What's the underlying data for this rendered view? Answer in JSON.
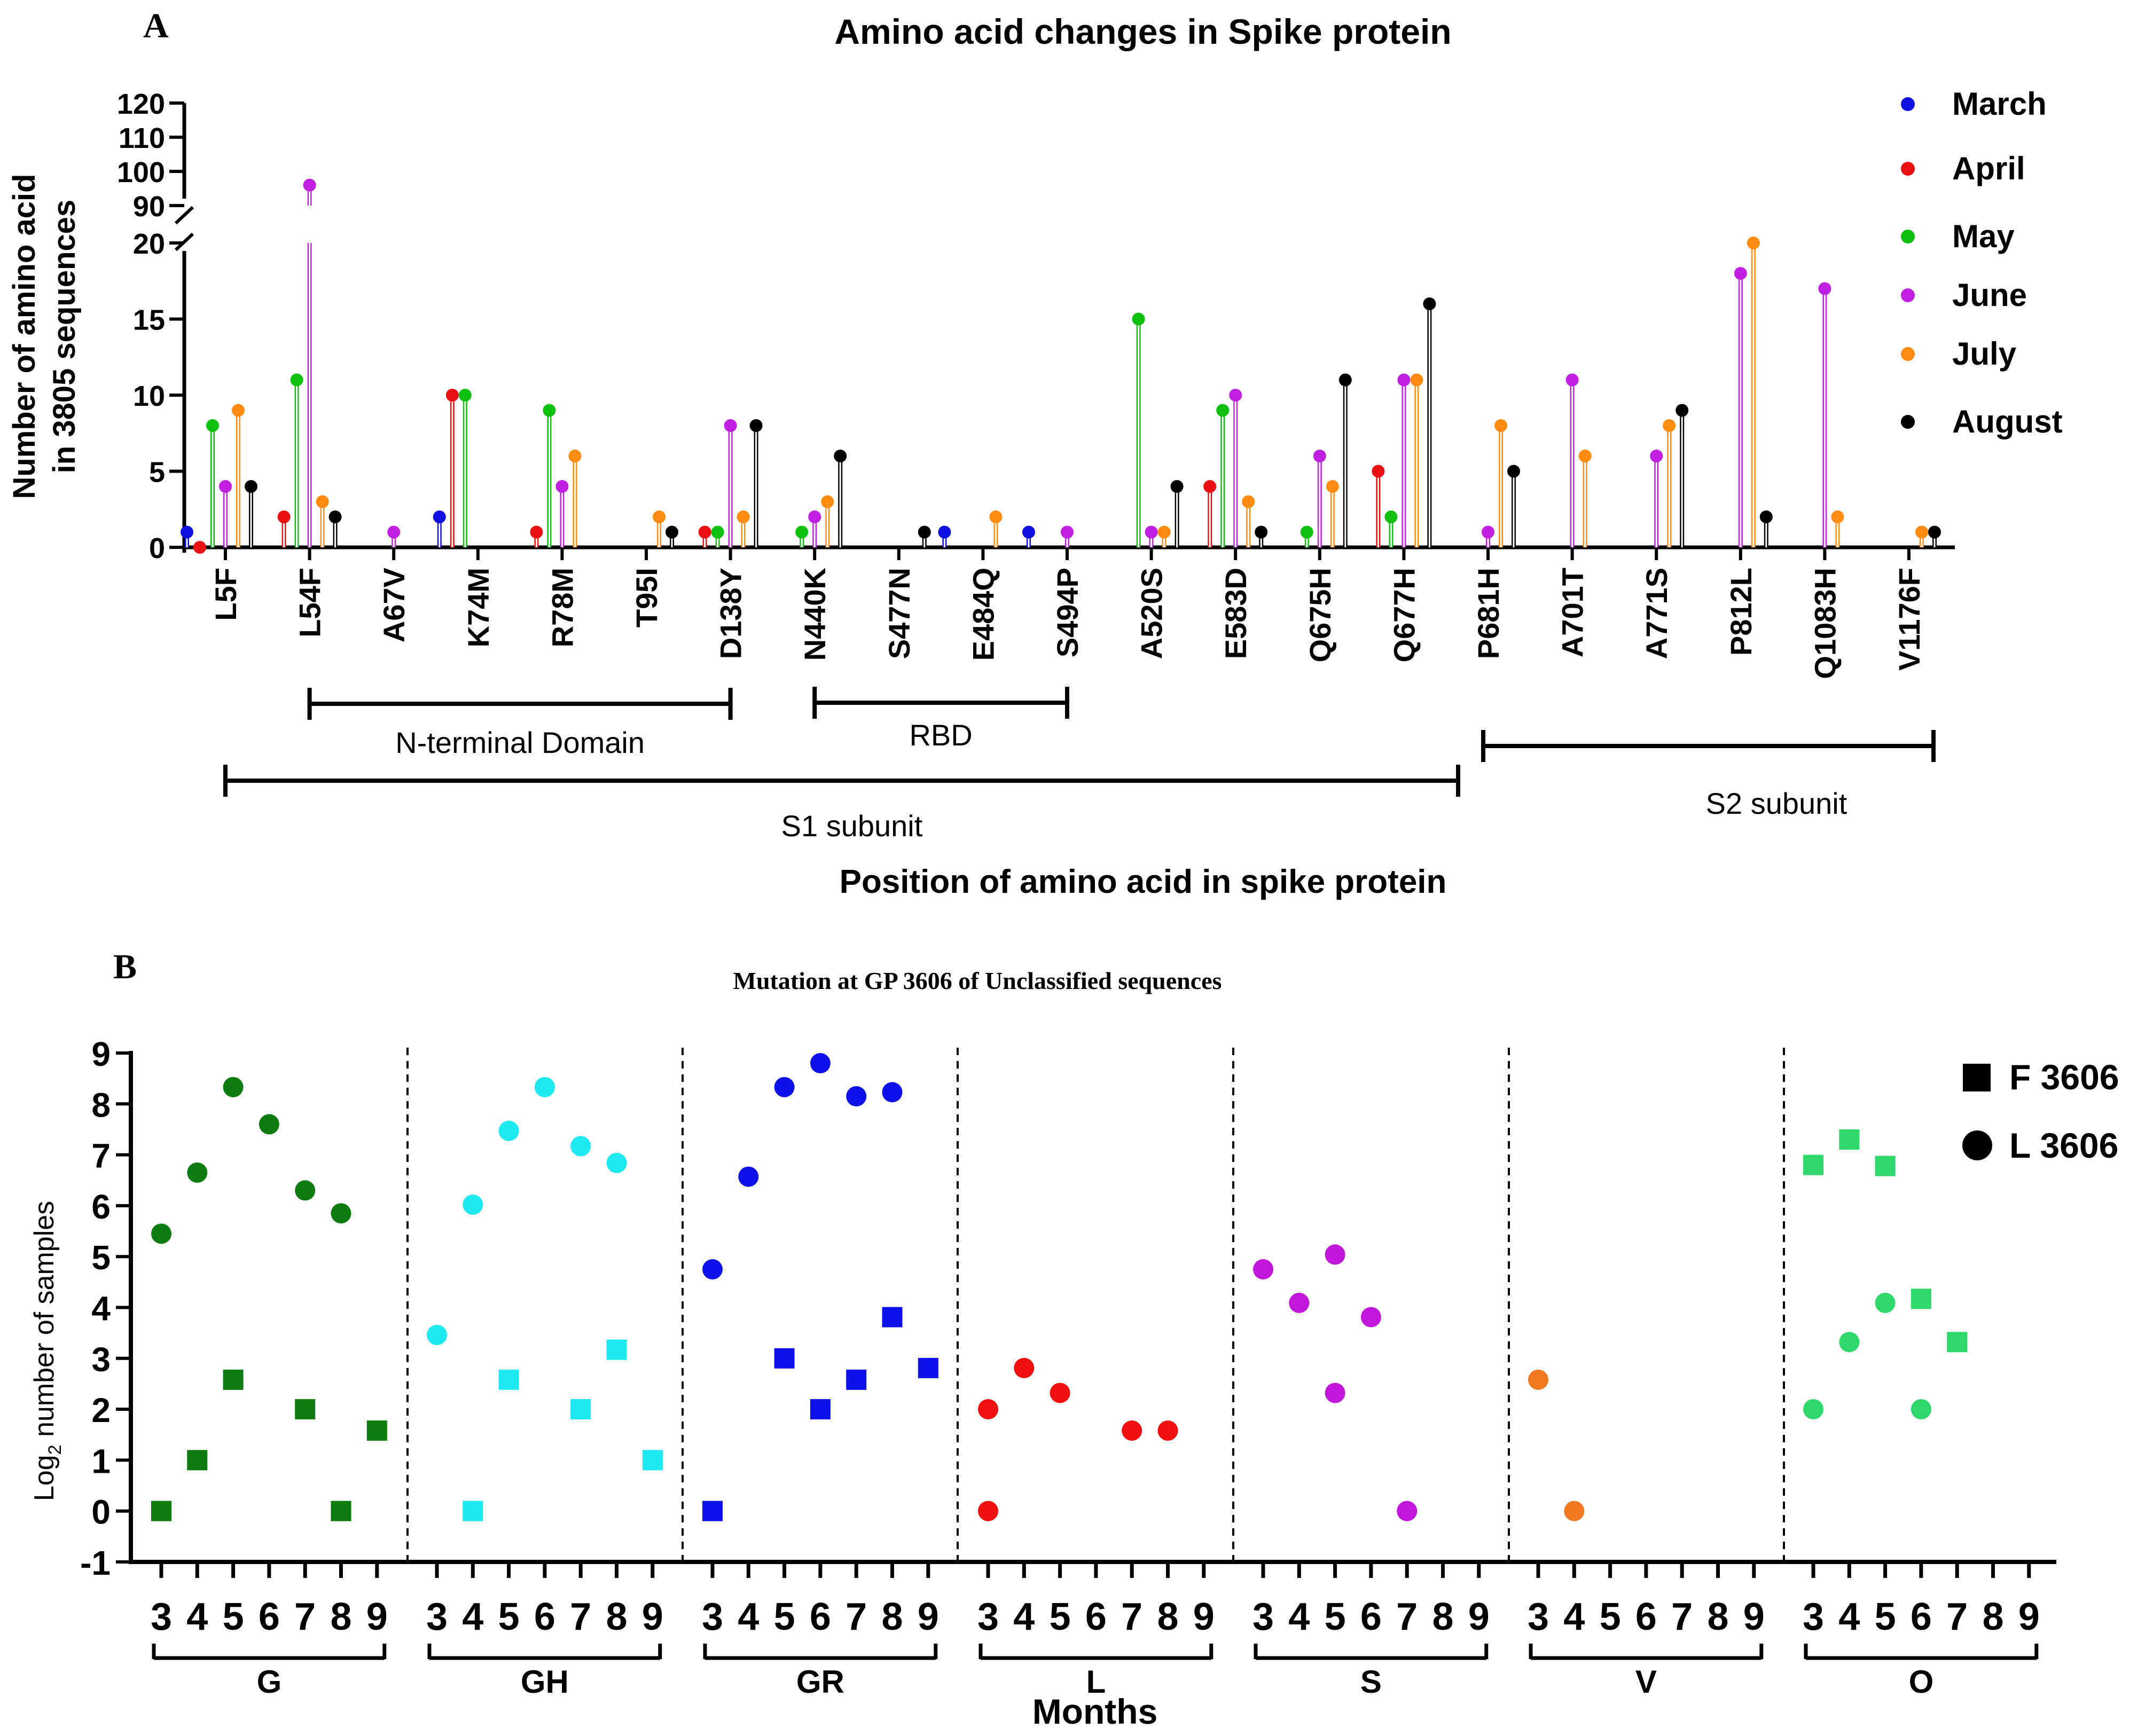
{
  "chart_data": [
    {
      "type": "lollipop",
      "panel_label": "A",
      "title": "Amino acid changes in Spike protein",
      "ylabel_lines": [
        "Number of amino acid",
        "in 3805 sequences"
      ],
      "xlabel": "Position of amino acid in spike protein",
      "y_ticks_lower": [
        "0",
        "5",
        "10",
        "15",
        "20"
      ],
      "y_ticks_upper": [
        "90",
        "100",
        "110",
        "120"
      ],
      "ylim_lower": [
        0,
        20
      ],
      "ylim_upper": [
        90,
        120
      ],
      "categories": [
        "L5F",
        "L54F",
        "A67V",
        "K74M",
        "R78M",
        "T95I",
        "D138Y",
        "N440K",
        "S477N",
        "E484Q",
        "S494P",
        "A520S",
        "E583D",
        "Q675H",
        "Q677H",
        "P681H",
        "A701T",
        "A771S",
        "P812L",
        "Q1083H",
        "V1176F"
      ],
      "series": [
        {
          "name": "March",
          "color": "#1010e0",
          "values": [
            1,
            null,
            null,
            2,
            null,
            null,
            null,
            null,
            null,
            1,
            1,
            null,
            null,
            null,
            null,
            null,
            null,
            null,
            null,
            null,
            null
          ]
        },
        {
          "name": "April",
          "color": "#e81010",
          "values": [
            0,
            2,
            null,
            10,
            1,
            null,
            1,
            null,
            null,
            null,
            null,
            null,
            4,
            null,
            5,
            null,
            null,
            null,
            null,
            null,
            null
          ]
        },
        {
          "name": "May",
          "color": "#10c010",
          "values": [
            8,
            11,
            null,
            10,
            9,
            null,
            1,
            1,
            null,
            null,
            null,
            15,
            9,
            1,
            2,
            null,
            null,
            null,
            null,
            null,
            null
          ]
        },
        {
          "name": "June",
          "color": "#c020e0",
          "values": [
            4,
            96,
            1,
            null,
            4,
            null,
            8,
            2,
            null,
            null,
            1,
            1,
            10,
            6,
            11,
            1,
            11,
            6,
            18,
            17,
            null
          ]
        },
        {
          "name": "July",
          "color": "#ff8c10",
          "values": [
            9,
            3,
            null,
            null,
            6,
            2,
            2,
            3,
            null,
            2,
            null,
            1,
            3,
            4,
            11,
            8,
            6,
            8,
            20,
            2,
            1
          ]
        },
        {
          "name": "August",
          "color": "#000000",
          "values": [
            4,
            2,
            null,
            null,
            null,
            1,
            8,
            6,
            1,
            null,
            null,
            4,
            1,
            11,
            16,
            5,
            null,
            9,
            2,
            null,
            1
          ]
        }
      ],
      "legend_position": "right",
      "domain_brackets": [
        {
          "label": "N-terminal Domain",
          "from": "L54F",
          "to": "D138Y"
        },
        {
          "label": "RBD",
          "from": "N440K",
          "to": "S494P"
        },
        {
          "label": "S1 subunit",
          "from": "L5F",
          "to": "P681H"
        },
        {
          "label": "S2 subunit",
          "from": "P681H",
          "to": "V1176F"
        }
      ]
    },
    {
      "type": "scatter",
      "panel_label": "B",
      "title": "Mutation at GP 3606 of Unclassified sequences",
      "ylabel_prefix": "Log",
      "ylabel_sub": "2",
      "ylabel_suffix": " number of samples",
      "xlabel": "Months",
      "y_ticks": [
        "9",
        "8",
        "7",
        "6",
        "5",
        "4",
        "3",
        "2",
        "1",
        "0",
        "-1"
      ],
      "ylim": [
        -1,
        9
      ],
      "month_ticks": [
        "3",
        "4",
        "5",
        "6",
        "7",
        "8",
        "9"
      ],
      "legend": [
        {
          "name": "F 3606",
          "marker": "square"
        },
        {
          "name": "L 3606",
          "marker": "circle"
        }
      ],
      "groups": [
        {
          "name": "G",
          "color": "#0e7c10",
          "L": [
            [
              3,
              5.45
            ],
            [
              4,
              6.65
            ],
            [
              5,
              8.33
            ],
            [
              6,
              7.6
            ],
            [
              7,
              6.3
            ],
            [
              8,
              5.85
            ]
          ],
          "F": [
            [
              3,
              0
            ],
            [
              4,
              1
            ],
            [
              5,
              2.58
            ],
            [
              7,
              2
            ],
            [
              8,
              0
            ],
            [
              9,
              1.58
            ]
          ]
        },
        {
          "name": "GH",
          "color": "#1ee8f0",
          "L": [
            [
              3,
              3.46
            ],
            [
              4,
              6.02
            ],
            [
              5,
              7.47
            ],
            [
              6,
              8.33
            ],
            [
              7,
              7.17
            ],
            [
              8,
              6.84
            ]
          ],
          "F": [
            [
              4,
              0
            ],
            [
              5,
              2.58
            ],
            [
              7,
              2
            ],
            [
              8,
              3.17
            ],
            [
              9,
              1
            ]
          ]
        },
        {
          "name": "GR",
          "color": "#1010e8",
          "L": [
            [
              3,
              4.75
            ],
            [
              4,
              6.57
            ],
            [
              5,
              8.33
            ],
            [
              6,
              8.8
            ],
            [
              7,
              8.15
            ],
            [
              8,
              8.23
            ]
          ],
          "F": [
            [
              3,
              0
            ],
            [
              5,
              3
            ],
            [
              6,
              2
            ],
            [
              7,
              2.58
            ],
            [
              8,
              3.81
            ],
            [
              9,
              2.81
            ]
          ]
        },
        {
          "name": "L",
          "color": "#f01010",
          "L": [
            [
              3,
              0
            ],
            [
              3,
              2
            ],
            [
              4,
              2.81
            ],
            [
              5,
              2.32
            ],
            [
              7,
              1.58
            ],
            [
              8,
              1.58
            ]
          ],
          "F": []
        },
        {
          "name": "S",
          "color": "#c018d8",
          "L": [
            [
              3,
              4.75
            ],
            [
              4,
              4.09
            ],
            [
              5,
              5.04
            ],
            [
              5,
              2.32
            ],
            [
              6,
              3.81
            ],
            [
              7,
              0
            ]
          ],
          "F": []
        },
        {
          "name": "V",
          "color": "#f07a20",
          "L": [
            [
              3,
              2.58
            ],
            [
              4,
              0
            ]
          ],
          "F": []
        },
        {
          "name": "O",
          "color": "#2ed86a",
          "L": [
            [
              3,
              2
            ],
            [
              4,
              3.32
            ],
            [
              5,
              4.09
            ],
            [
              6,
              2
            ]
          ],
          "F": [
            [
              3,
              6.8
            ],
            [
              4,
              7.3
            ],
            [
              5,
              6.78
            ],
            [
              6,
              4.17
            ],
            [
              7,
              3.32
            ]
          ]
        }
      ]
    }
  ]
}
